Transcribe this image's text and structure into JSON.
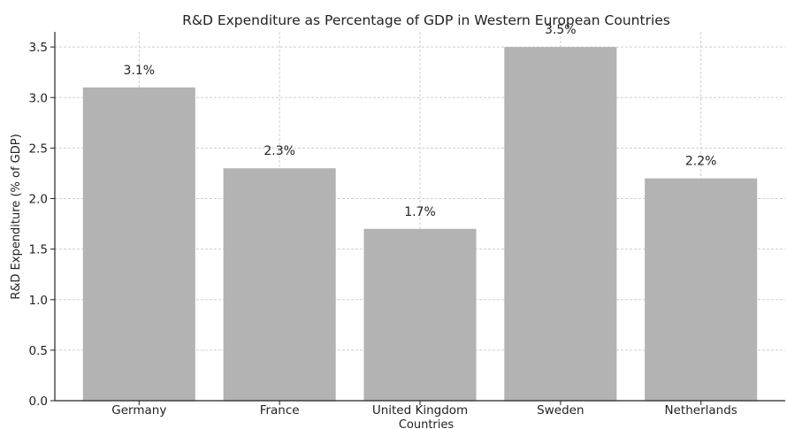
{
  "chart_data": {
    "type": "bar",
    "title": "R&D Expenditure as Percentage of GDP in Western European Countries",
    "xlabel": "Countries",
    "ylabel": "R&D Expenditure (% of GDP)",
    "categories": [
      "Germany",
      "France",
      "United Kingdom",
      "Sweden",
      "Netherlands"
    ],
    "values": [
      3.1,
      2.3,
      1.7,
      3.5,
      2.2
    ],
    "data_labels": [
      "3.1%",
      "2.3%",
      "1.7%",
      "3.5%",
      "2.2%"
    ],
    "ylim": [
      0,
      3.65
    ],
    "yticks": [
      "0.0",
      "0.5",
      "1.0",
      "1.5",
      "2.0",
      "2.5",
      "3.0",
      "3.5"
    ],
    "grid": true,
    "bar_color": "#b3b3b3"
  }
}
